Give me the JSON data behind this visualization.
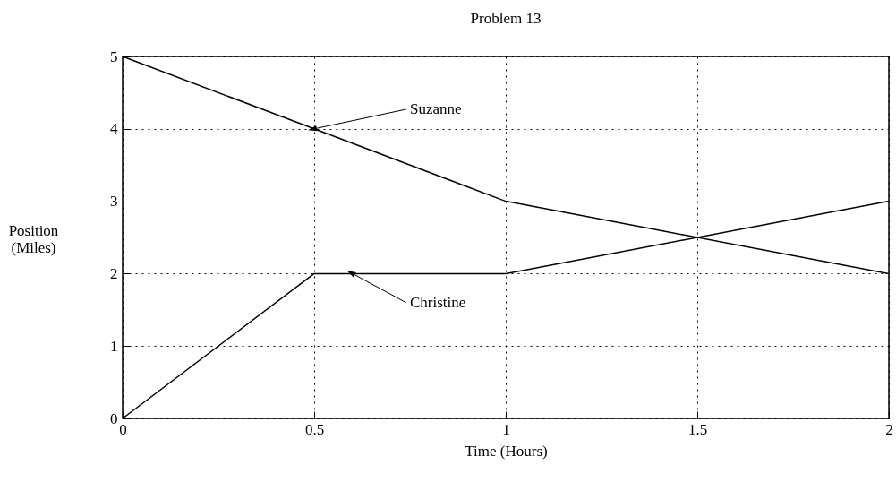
{
  "chart_data": {
    "type": "line",
    "title": "Problem 13",
    "xlabel": "Time (Hours)",
    "ylabel": "Position (Miles)",
    "x": [
      0,
      0.5,
      1,
      2
    ],
    "series": [
      {
        "name": "Suzanne",
        "color": "#000000",
        "values": [
          5,
          4,
          3,
          2
        ]
      },
      {
        "name": "Christine",
        "color": "#000000",
        "values": [
          0,
          2,
          2,
          3
        ]
      }
    ],
    "xlim": [
      0,
      2
    ],
    "xticks": [
      0,
      0.5,
      1,
      1.5,
      2
    ],
    "ylim": [
      0,
      5
    ],
    "yticks": [
      0,
      1,
      2,
      3,
      4,
      5
    ],
    "grid": true
  }
}
